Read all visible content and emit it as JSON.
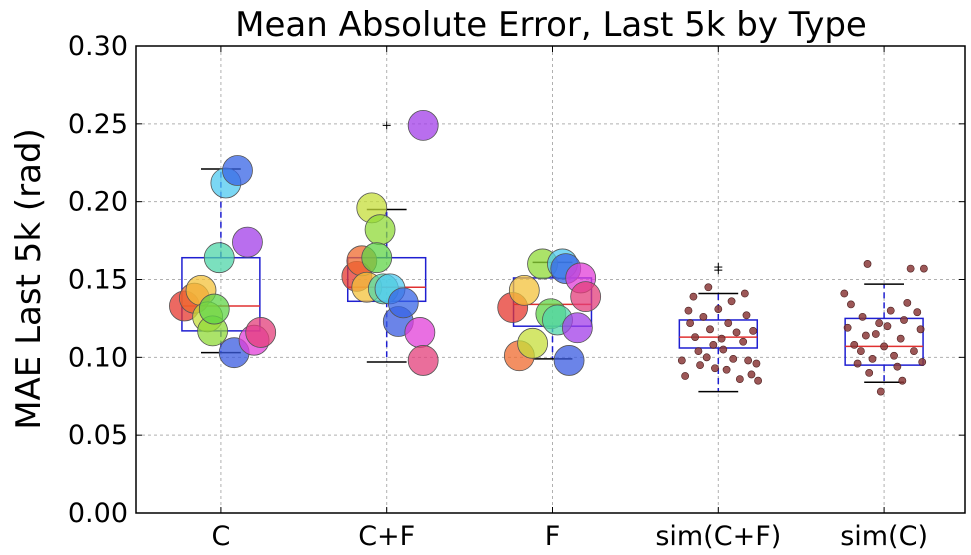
{
  "chart_data": {
    "type": "box+scatter",
    "title": "Mean Absolute Error, Last 5k by Type",
    "xlabel": "",
    "ylabel": "MAE Last 5k (rad)",
    "ylim": [
      0.0,
      0.3
    ],
    "yticks": [
      "0.00",
      "0.05",
      "0.10",
      "0.15",
      "0.20",
      "0.25",
      "0.30"
    ],
    "ytick_values": [
      0.0,
      0.05,
      0.1,
      0.15,
      0.2,
      0.25,
      0.3
    ],
    "grid": true,
    "categories": [
      "C",
      "C+F",
      "F",
      "sim(C+F)",
      "sim(C)"
    ],
    "boxes": [
      {
        "category": "C",
        "whisker_low": 0.103,
        "q1": 0.117,
        "median": 0.133,
        "q3": 0.164,
        "whisker_high": 0.221,
        "outliers": []
      },
      {
        "category": "C+F",
        "whisker_low": 0.097,
        "q1": 0.136,
        "median": 0.145,
        "q3": 0.164,
        "whisker_high": 0.195,
        "outliers": [
          0.249
        ]
      },
      {
        "category": "F",
        "whisker_low": 0.099,
        "q1": 0.12,
        "median": 0.134,
        "q3": 0.151,
        "whisker_high": 0.161,
        "outliers": []
      },
      {
        "category": "sim(C+F)",
        "whisker_low": 0.078,
        "q1": 0.106,
        "median": 0.113,
        "q3": 0.124,
        "whisker_high": 0.141,
        "outliers": [
          0.156,
          0.158
        ]
      },
      {
        "category": "sim(C)",
        "whisker_low": 0.084,
        "q1": 0.095,
        "median": 0.107,
        "q3": 0.125,
        "whisker_high": 0.147,
        "outliers": []
      }
    ],
    "large_points": [
      {
        "category": "C",
        "points": [
          {
            "dx": -0.22,
            "y": 0.133,
            "color": "#e6372e"
          },
          {
            "dx": -0.16,
            "y": 0.138,
            "color": "#ef6a2e"
          },
          {
            "dx": -0.12,
            "y": 0.143,
            "color": "#f3c23a"
          },
          {
            "dx": -0.08,
            "y": 0.126,
            "color": "#c6dd3a"
          },
          {
            "dx": -0.05,
            "y": 0.117,
            "color": "#8fd937"
          },
          {
            "dx": -0.04,
            "y": 0.131,
            "color": "#5fd447"
          },
          {
            "dx": -0.01,
            "y": 0.164,
            "color": "#4fd6a8"
          },
          {
            "dx": 0.03,
            "y": 0.212,
            "color": "#4fc9f0"
          },
          {
            "dx": 0.1,
            "y": 0.22,
            "color": "#3764e6"
          },
          {
            "dx": 0.08,
            "y": 0.103,
            "color": "#3a5be0"
          },
          {
            "dx": 0.16,
            "y": 0.174,
            "color": "#a23ee8"
          },
          {
            "dx": 0.2,
            "y": 0.111,
            "color": "#e23fd8"
          },
          {
            "dx": 0.24,
            "y": 0.116,
            "color": "#e33d7a"
          }
        ]
      },
      {
        "category": "C+F",
        "points": [
          {
            "dx": -0.18,
            "y": 0.152,
            "color": "#e6372e"
          },
          {
            "dx": -0.15,
            "y": 0.162,
            "color": "#ef6a2e"
          },
          {
            "dx": -0.12,
            "y": 0.145,
            "color": "#f3c23a"
          },
          {
            "dx": -0.09,
            "y": 0.196,
            "color": "#c6dd3a"
          },
          {
            "dx": -0.04,
            "y": 0.182,
            "color": "#8fd937"
          },
          {
            "dx": -0.06,
            "y": 0.164,
            "color": "#5fd447"
          },
          {
            "dx": -0.02,
            "y": 0.144,
            "color": "#4fd6a8"
          },
          {
            "dx": 0.02,
            "y": 0.144,
            "color": "#4fc9f0"
          },
          {
            "dx": 0.07,
            "y": 0.123,
            "color": "#3a5be0"
          },
          {
            "dx": 0.1,
            "y": 0.135,
            "color": "#3764e6"
          },
          {
            "dx": 0.22,
            "y": 0.249,
            "color": "#a23ee8"
          },
          {
            "dx": 0.2,
            "y": 0.116,
            "color": "#e23fd8"
          },
          {
            "dx": 0.22,
            "y": 0.098,
            "color": "#e33d7a"
          }
        ]
      },
      {
        "category": "F",
        "points": [
          {
            "dx": -0.24,
            "y": 0.132,
            "color": "#e6372e"
          },
          {
            "dx": -0.2,
            "y": 0.101,
            "color": "#ef6a2e"
          },
          {
            "dx": -0.17,
            "y": 0.143,
            "color": "#f3c23a"
          },
          {
            "dx": -0.12,
            "y": 0.109,
            "color": "#c6dd3a"
          },
          {
            "dx": -0.06,
            "y": 0.16,
            "color": "#8fd937"
          },
          {
            "dx": -0.01,
            "y": 0.128,
            "color": "#5fd447"
          },
          {
            "dx": 0.03,
            "y": 0.124,
            "color": "#4fd6a8"
          },
          {
            "dx": 0.06,
            "y": 0.16,
            "color": "#4fc9f0"
          },
          {
            "dx": 0.08,
            "y": 0.157,
            "color": "#3764e6"
          },
          {
            "dx": 0.1,
            "y": 0.098,
            "color": "#3a5be0"
          },
          {
            "dx": 0.15,
            "y": 0.119,
            "color": "#a23ee8"
          },
          {
            "dx": 0.17,
            "y": 0.151,
            "color": "#e23fd8"
          },
          {
            "dx": 0.2,
            "y": 0.139,
            "color": "#e33d7a"
          }
        ]
      }
    ],
    "small_points": [
      {
        "category": "sim(C+F)",
        "color": "#8b3a3a",
        "points": [
          {
            "dx": -0.22,
            "y": 0.098
          },
          {
            "dx": -0.2,
            "y": 0.088
          },
          {
            "dx": -0.18,
            "y": 0.13
          },
          {
            "dx": -0.17,
            "y": 0.122
          },
          {
            "dx": -0.15,
            "y": 0.139
          },
          {
            "dx": -0.14,
            "y": 0.113
          },
          {
            "dx": -0.12,
            "y": 0.104
          },
          {
            "dx": -0.11,
            "y": 0.095
          },
          {
            "dx": -0.09,
            "y": 0.126
          },
          {
            "dx": -0.07,
            "y": 0.1
          },
          {
            "dx": -0.05,
            "y": 0.118
          },
          {
            "dx": -0.03,
            "y": 0.108
          },
          {
            "dx": -0.02,
            "y": 0.093
          },
          {
            "dx": 0.0,
            "y": 0.131
          },
          {
            "dx": 0.02,
            "y": 0.112
          },
          {
            "dx": 0.03,
            "y": 0.105
          },
          {
            "dx": 0.05,
            "y": 0.092
          },
          {
            "dx": 0.06,
            "y": 0.122
          },
          {
            "dx": 0.08,
            "y": 0.136
          },
          {
            "dx": 0.09,
            "y": 0.099
          },
          {
            "dx": 0.11,
            "y": 0.116
          },
          {
            "dx": 0.13,
            "y": 0.086
          },
          {
            "dx": 0.15,
            "y": 0.11
          },
          {
            "dx": 0.17,
            "y": 0.127
          },
          {
            "dx": 0.18,
            "y": 0.098
          },
          {
            "dx": 0.2,
            "y": 0.089
          },
          {
            "dx": 0.21,
            "y": 0.117
          },
          {
            "dx": 0.23,
            "y": 0.096
          },
          {
            "dx": 0.24,
            "y": 0.085
          },
          {
            "dx": -0.06,
            "y": 0.145
          },
          {
            "dx": 0.16,
            "y": 0.141
          }
        ]
      },
      {
        "category": "sim(C)",
        "color": "#8b3a3a",
        "points": [
          {
            "dx": -0.24,
            "y": 0.141
          },
          {
            "dx": -0.22,
            "y": 0.119
          },
          {
            "dx": -0.2,
            "y": 0.134
          },
          {
            "dx": -0.18,
            "y": 0.108
          },
          {
            "dx": -0.16,
            "y": 0.096
          },
          {
            "dx": -0.14,
            "y": 0.104
          },
          {
            "dx": -0.13,
            "y": 0.126
          },
          {
            "dx": -0.11,
            "y": 0.114
          },
          {
            "dx": -0.09,
            "y": 0.09
          },
          {
            "dx": -0.07,
            "y": 0.099
          },
          {
            "dx": -0.05,
            "y": 0.115
          },
          {
            "dx": -0.03,
            "y": 0.122
          },
          {
            "dx": -0.02,
            "y": 0.078
          },
          {
            "dx": 0.0,
            "y": 0.107
          },
          {
            "dx": 0.02,
            "y": 0.12
          },
          {
            "dx": 0.04,
            "y": 0.13
          },
          {
            "dx": 0.06,
            "y": 0.101
          },
          {
            "dx": 0.08,
            "y": 0.094
          },
          {
            "dx": 0.1,
            "y": 0.112
          },
          {
            "dx": 0.12,
            "y": 0.124
          },
          {
            "dx": 0.14,
            "y": 0.135
          },
          {
            "dx": 0.16,
            "y": 0.157
          },
          {
            "dx": 0.18,
            "y": 0.104
          },
          {
            "dx": 0.2,
            "y": 0.129
          },
          {
            "dx": 0.22,
            "y": 0.118
          },
          {
            "dx": 0.24,
            "y": 0.157
          },
          {
            "dx": 0.23,
            "y": 0.097
          },
          {
            "dx": -0.1,
            "y": 0.16
          },
          {
            "dx": 0.11,
            "y": 0.085
          }
        ]
      }
    ],
    "colors": {
      "box": "#1f1fd1",
      "median": "#e03030",
      "whisker": "#1f1fd1",
      "cap": "#000000",
      "outlier": "#000000"
    }
  }
}
